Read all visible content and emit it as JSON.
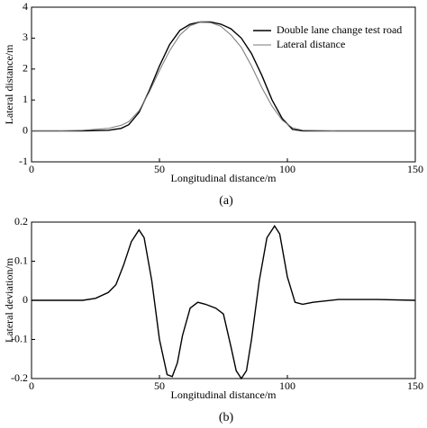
{
  "chart_data": [
    {
      "type": "line",
      "label": "(a)",
      "xlabel": "Longitudinal distance/m",
      "ylabel": "Lateral distance/m",
      "x": [
        0,
        10,
        20,
        30,
        35,
        38,
        42,
        46,
        50,
        54,
        58,
        62,
        66,
        70,
        74,
        78,
        82,
        86,
        90,
        94,
        98,
        102,
        106,
        120,
        135,
        150
      ],
      "series": [
        {
          "name": "Double lane change test road",
          "color": "#000000",
          "values": [
            0,
            0,
            0,
            0.02,
            0.08,
            0.2,
            0.6,
            1.3,
            2.1,
            2.8,
            3.25,
            3.45,
            3.52,
            3.52,
            3.45,
            3.3,
            3.0,
            2.5,
            1.8,
            1.0,
            0.4,
            0.05,
            0,
            0,
            0,
            0
          ]
        },
        {
          "name": "Lateral distance",
          "color": "#777777",
          "values": [
            0,
            0,
            0.02,
            0.08,
            0.18,
            0.3,
            0.65,
            1.25,
            1.95,
            2.6,
            3.1,
            3.4,
            3.52,
            3.5,
            3.38,
            3.1,
            2.7,
            2.1,
            1.4,
            0.8,
            0.35,
            0.1,
            0.02,
            0,
            0,
            0
          ]
        }
      ],
      "xlim": [
        0,
        150
      ],
      "xticks": [
        0,
        50,
        100,
        150
      ],
      "ylim": [
        -1,
        4
      ],
      "yticks": [
        -1,
        0,
        1,
        2,
        3,
        4
      ],
      "legend": "upper right"
    },
    {
      "type": "line",
      "label": "(b)",
      "xlabel": "Longitudinal distance/m",
      "ylabel": "Lateral deviation/m",
      "x": [
        0,
        10,
        20,
        25,
        30,
        33,
        36,
        39,
        42,
        44,
        47,
        50,
        53,
        55,
        57,
        59,
        62,
        65,
        68,
        72,
        75,
        78,
        80,
        82,
        84,
        86,
        89,
        92,
        95,
        97,
        100,
        103,
        106,
        110,
        120,
        135,
        150
      ],
      "series": [
        {
          "color": "#000000",
          "values": [
            0,
            0,
            0,
            0.005,
            0.02,
            0.04,
            0.09,
            0.15,
            0.18,
            0.16,
            0.05,
            -0.1,
            -0.19,
            -0.195,
            -0.16,
            -0.09,
            -0.02,
            -0.005,
            -0.01,
            -0.02,
            -0.035,
            -0.12,
            -0.18,
            -0.2,
            -0.18,
            -0.1,
            0.05,
            0.16,
            0.19,
            0.17,
            0.06,
            -0.005,
            -0.01,
            -0.005,
            0.002,
            0.002,
            0
          ]
        }
      ],
      "xlim": [
        0,
        150
      ],
      "xticks": [
        0,
        50,
        100,
        150
      ],
      "ylim": [
        -0.2,
        0.2
      ],
      "yticks": [
        -0.2,
        -0.1,
        0,
        0.1,
        0.2
      ]
    }
  ]
}
